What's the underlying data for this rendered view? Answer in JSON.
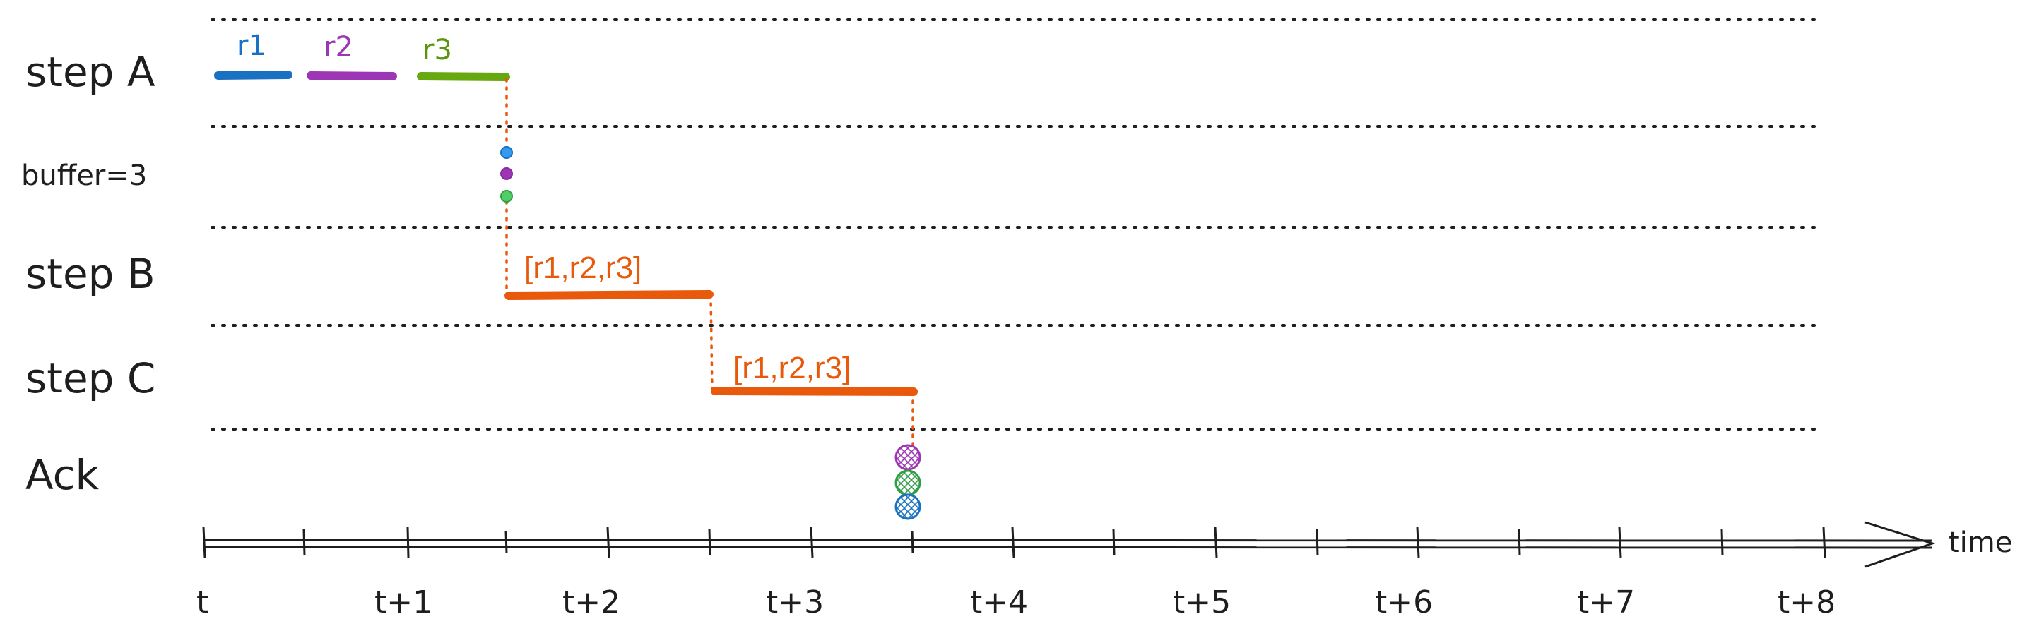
{
  "rows": [
    {
      "id": "step-a",
      "label": "step A"
    },
    {
      "id": "buffer",
      "label": "buffer=3"
    },
    {
      "id": "step-b",
      "label": "step B"
    },
    {
      "id": "step-c",
      "label": "step C"
    },
    {
      "id": "ack",
      "label": "Ack"
    }
  ],
  "axis": {
    "label": "time",
    "ticks": [
      "t",
      "t+1",
      "t+2",
      "t+3",
      "t+4",
      "t+5",
      "t+6",
      "t+7",
      "t+8"
    ]
  },
  "requests": [
    {
      "label": "r1",
      "color": "#1971c2"
    },
    {
      "label": "r2",
      "color": "#9c36b5"
    },
    {
      "label": "r3",
      "color": "#2f9e44"
    }
  ],
  "batches": [
    {
      "row": "step-b",
      "label": "[r1,r2,r3]",
      "color": "#e8590c"
    },
    {
      "row": "step-c",
      "label": "[r1,r2,r3]",
      "color": "#e8590c"
    }
  ],
  "colors": {
    "ink": "#1e1e1e",
    "batch": "#e8590c",
    "step_a_r3_bar": "#66a80f"
  }
}
